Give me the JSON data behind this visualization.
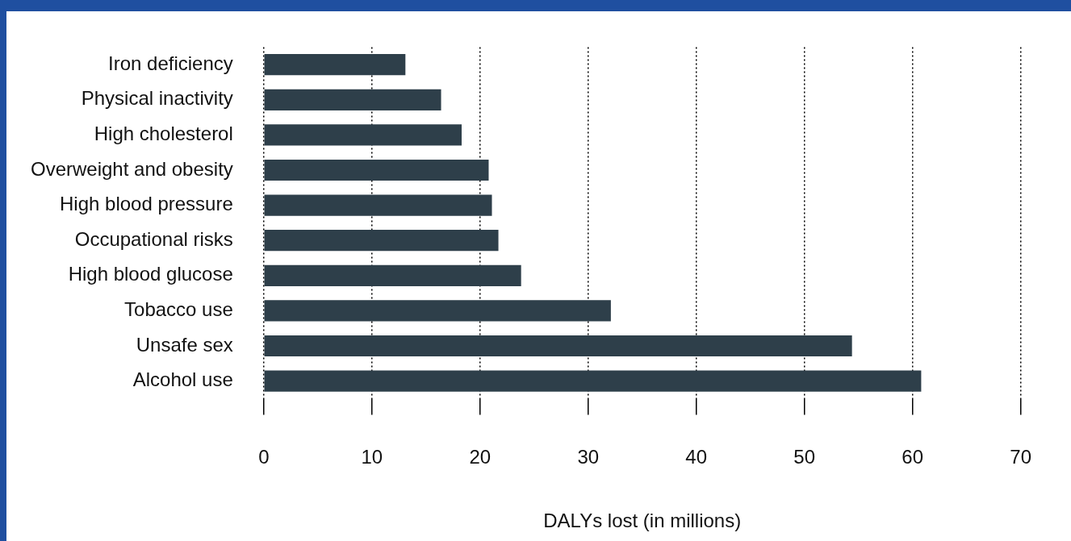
{
  "chart_data": {
    "type": "bar",
    "orientation": "horizontal",
    "xlabel": "DALYs lost (in millions)",
    "categories": [
      "Iron deficiency",
      "Physical inactivity",
      "High cholesterol",
      "Overweight and obesity",
      "High blood pressure",
      "Occupational risks",
      "High blood glucose",
      "Tobacco use",
      "Unsafe sex",
      "Alcohol use"
    ],
    "values": [
      13.1,
      16.4,
      18.3,
      20.8,
      21.1,
      21.7,
      23.8,
      32.1,
      54.4,
      60.8
    ],
    "color": "#2e3f4a",
    "xlim": [
      0,
      70
    ],
    "xticks": [
      0,
      10,
      20,
      30,
      40,
      50,
      60,
      70
    ],
    "grid": "x",
    "legend": false
  }
}
